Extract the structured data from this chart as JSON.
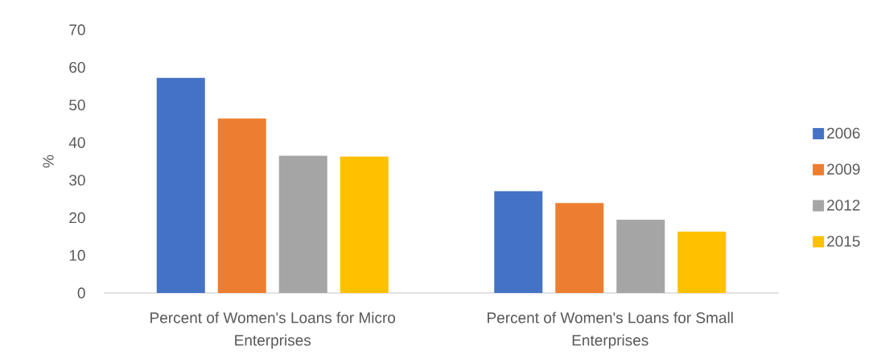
{
  "chart_data": {
    "type": "bar",
    "ylabel": "%",
    "categories": [
      "Percent of Women's Loans for Micro Enterprises",
      "Percent of Women's Loans for Small Enterprises"
    ],
    "series": [
      {
        "name": "2006",
        "color": "#4472c4",
        "values": [
          57.2,
          27.1
        ]
      },
      {
        "name": "2009",
        "color": "#ed7d31",
        "values": [
          46.4,
          23.9
        ]
      },
      {
        "name": "2012",
        "color": "#a5a5a5",
        "values": [
          36.5,
          19.5
        ]
      },
      {
        "name": "2015",
        "color": "#ffc000",
        "values": [
          36.3,
          16.3
        ]
      }
    ],
    "ylim": [
      0,
      70
    ],
    "yticks": [
      0,
      10,
      20,
      30,
      40,
      50,
      60,
      70
    ],
    "legend": "right"
  }
}
